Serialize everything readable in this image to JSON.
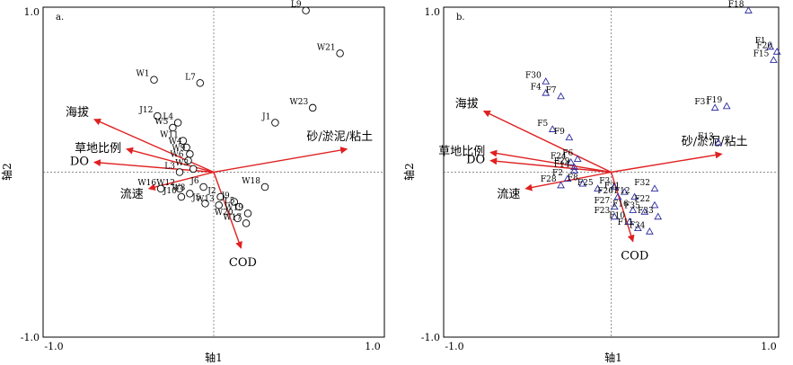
{
  "chart_data": [
    {
      "type": "scatter",
      "panel_label": "a.",
      "xlabel": "轴1",
      "ylabel": "轴2",
      "xlim": [
        -1.0,
        1.0
      ],
      "ylim": [
        -1.0,
        1.0
      ],
      "x_ticks": [
        {
          "value": -1.0,
          "label": "-1.0"
        },
        {
          "value": 1.0,
          "label": "1.0"
        }
      ],
      "y_ticks": [
        {
          "value": 1.0,
          "label": "1.0"
        },
        {
          "value": -1.0,
          "label": "-1.0"
        }
      ],
      "marker": "circle",
      "points": [
        {
          "label": "L9",
          "x": 0.54,
          "y": 0.98
        },
        {
          "label": "W21",
          "x": 0.74,
          "y": 0.72
        },
        {
          "label": "W23",
          "x": 0.58,
          "y": 0.39
        },
        {
          "label": "J1",
          "x": 0.36,
          "y": 0.3
        },
        {
          "label": "W1",
          "x": -0.35,
          "y": 0.56
        },
        {
          "label": "L7",
          "x": -0.08,
          "y": 0.54
        },
        {
          "label": "J12",
          "x": -0.33,
          "y": 0.34
        },
        {
          "label": "L4",
          "x": -0.21,
          "y": 0.3
        },
        {
          "label": "W5",
          "x": -0.24,
          "y": 0.27
        },
        {
          "label": "W11",
          "x": -0.18,
          "y": 0.19
        },
        {
          "label": "W4",
          "x": -0.16,
          "y": 0.15
        },
        {
          "label": "W9",
          "x": -0.14,
          "y": 0.11
        },
        {
          "label": "W6",
          "x": -0.15,
          "y": 0.07
        },
        {
          "label": "W3",
          "x": -0.12,
          "y": 0.02
        },
        {
          "label": "L3",
          "x": -0.2,
          "y": 0.0
        },
        {
          "label": "W16",
          "x": -0.31,
          "y": -0.1
        },
        {
          "label": "W12",
          "x": -0.2,
          "y": -0.1
        },
        {
          "label": "J10",
          "x": -0.19,
          "y": -0.15
        },
        {
          "label": "W8",
          "x": -0.14,
          "y": -0.13
        },
        {
          "label": "J6",
          "x": -0.06,
          "y": -0.09
        },
        {
          "label": "J5",
          "x": -0.05,
          "y": -0.19
        },
        {
          "label": "W13",
          "x": 0.03,
          "y": -0.2
        },
        {
          "label": "J2",
          "x": 0.04,
          "y": -0.15
        },
        {
          "label": "J9",
          "x": 0.12,
          "y": -0.18
        },
        {
          "label": "L5",
          "x": 0.15,
          "y": -0.21
        },
        {
          "label": "W20",
          "x": 0.14,
          "y": -0.28
        },
        {
          "label": "W19",
          "x": 0.2,
          "y": -0.25
        },
        {
          "label": "W17",
          "x": 0.19,
          "y": -0.31
        },
        {
          "label": "W18",
          "x": 0.3,
          "y": -0.09
        }
      ],
      "vectors": [
        {
          "label": "海拔",
          "x": -0.7,
          "y": 0.32
        },
        {
          "label": "草地比例",
          "x": -0.51,
          "y": 0.14
        },
        {
          "label": "DO",
          "x": -0.7,
          "y": 0.06
        },
        {
          "label": "流速",
          "x": -0.38,
          "y": -0.1
        },
        {
          "label": "砂/淤泥/粘土",
          "x": 0.78,
          "y": 0.14
        },
        {
          "label": "COD",
          "x": 0.16,
          "y": -0.46
        }
      ]
    },
    {
      "type": "scatter",
      "panel_label": "b.",
      "xlabel": "轴1",
      "ylabel": "轴2",
      "xlim": [
        -1.0,
        1.0
      ],
      "ylim": [
        -1.0,
        1.0
      ],
      "x_ticks": [
        {
          "value": -1.0,
          "label": "-1.0"
        },
        {
          "value": 1.0,
          "label": "1.0"
        }
      ],
      "y_ticks": [
        {
          "value": 1.0,
          "label": "1.0"
        },
        {
          "value": -1.0,
          "label": "-1.0"
        }
      ],
      "marker": "triangle",
      "points": [
        {
          "label": "F18",
          "x": 0.82,
          "y": 0.98
        },
        {
          "label": "F1",
          "x": 0.95,
          "y": 0.76
        },
        {
          "label": "F20",
          "x": 0.99,
          "y": 0.73
        },
        {
          "label": "F15",
          "x": 0.97,
          "y": 0.68
        },
        {
          "label": "F30",
          "x": -0.39,
          "y": 0.55
        },
        {
          "label": "F4",
          "x": -0.39,
          "y": 0.48
        },
        {
          "label": "F7",
          "x": -0.3,
          "y": 0.46
        },
        {
          "label": "F31",
          "x": 0.62,
          "y": 0.39
        },
        {
          "label": "F19",
          "x": 0.69,
          "y": 0.4
        },
        {
          "label": "F5",
          "x": -0.35,
          "y": 0.26
        },
        {
          "label": "F9",
          "x": -0.25,
          "y": 0.21
        },
        {
          "label": "F13",
          "x": 0.64,
          "y": 0.18
        },
        {
          "label": "F6",
          "x": -0.2,
          "y": 0.08
        },
        {
          "label": "F24",
          "x": -0.24,
          "y": 0.06
        },
        {
          "label": "F29",
          "x": -0.22,
          "y": 0.03
        },
        {
          "label": "F14",
          "x": -0.22,
          "y": 0.01
        },
        {
          "label": "F2",
          "x": -0.26,
          "y": -0.04
        },
        {
          "label": "F8",
          "x": -0.17,
          "y": -0.07
        },
        {
          "label": "F28",
          "x": -0.3,
          "y": -0.08
        },
        {
          "label": "F25",
          "x": -0.08,
          "y": -0.1
        },
        {
          "label": "F3",
          "x": 0.02,
          "y": -0.09
        },
        {
          "label": "F21",
          "x": 0.08,
          "y": -0.12
        },
        {
          "label": "F26",
          "x": 0.04,
          "y": -0.15
        },
        {
          "label": "F12",
          "x": 0.14,
          "y": -0.15
        },
        {
          "label": "F32",
          "x": 0.26,
          "y": -0.1
        },
        {
          "label": "F27",
          "x": 0.02,
          "y": -0.21
        },
        {
          "label": "F16",
          "x": 0.13,
          "y": -0.23
        },
        {
          "label": "F22",
          "x": 0.26,
          "y": -0.2
        },
        {
          "label": "F23",
          "x": 0.02,
          "y": -0.27
        },
        {
          "label": "F10",
          "x": 0.11,
          "y": -0.3
        },
        {
          "label": "F35",
          "x": 0.2,
          "y": -0.24
        },
        {
          "label": "F33",
          "x": 0.28,
          "y": -0.27
        },
        {
          "label": "F11",
          "x": 0.16,
          "y": -0.34
        },
        {
          "label": "F34",
          "x": 0.23,
          "y": -0.36
        }
      ],
      "vectors": [
        {
          "label": "海拔",
          "x": -0.76,
          "y": 0.37
        },
        {
          "label": "草地比例",
          "x": -0.72,
          "y": 0.12
        },
        {
          "label": "DO",
          "x": -0.72,
          "y": 0.07
        },
        {
          "label": "流速",
          "x": -0.51,
          "y": -0.1
        },
        {
          "label": "砂/淤泥/粘土",
          "x": 0.66,
          "y": 0.11
        },
        {
          "label": "COD",
          "x": 0.13,
          "y": -0.42
        }
      ]
    }
  ]
}
